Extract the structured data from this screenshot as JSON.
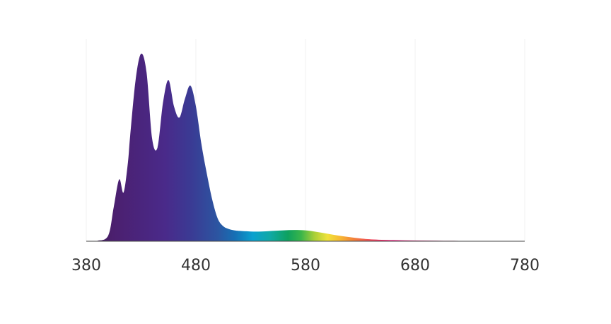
{
  "chart_data": {
    "type": "area",
    "title": "",
    "xlabel": "",
    "ylabel": "",
    "xlim": [
      380,
      780
    ],
    "ylim": [
      0,
      1
    ],
    "grid": true,
    "x_ticks": [
      380,
      480,
      580,
      680,
      780
    ],
    "x_tick_labels": [
      "380",
      "480",
      "580",
      "680",
      "780"
    ],
    "fill": "visible-spectrum gradient (wavelength color)",
    "series": [
      {
        "x": [
          380,
          390,
          400,
          405,
          410,
          414,
          418,
          420,
          425,
          430,
          435,
          440,
          445,
          450,
          455,
          460,
          465,
          470,
          475,
          480,
          485,
          490,
          495,
          500,
          505,
          510,
          515,
          520,
          530,
          540,
          550,
          560,
          570,
          580,
          590,
          600,
          610,
          620,
          630,
          640,
          660,
          680,
          700,
          720,
          740,
          760,
          780
        ],
        "y": [
          0,
          0.002,
          0.03,
          0.18,
          0.33,
          0.26,
          0.42,
          0.56,
          0.86,
          1.0,
          0.9,
          0.55,
          0.5,
          0.74,
          0.86,
          0.72,
          0.66,
          0.76,
          0.83,
          0.72,
          0.52,
          0.36,
          0.22,
          0.12,
          0.08,
          0.065,
          0.058,
          0.055,
          0.052,
          0.052,
          0.055,
          0.058,
          0.06,
          0.058,
          0.05,
          0.04,
          0.03,
          0.022,
          0.015,
          0.01,
          0.006,
          0.004,
          0.003,
          0.002,
          0.001,
          0.001,
          0
        ]
      }
    ]
  }
}
